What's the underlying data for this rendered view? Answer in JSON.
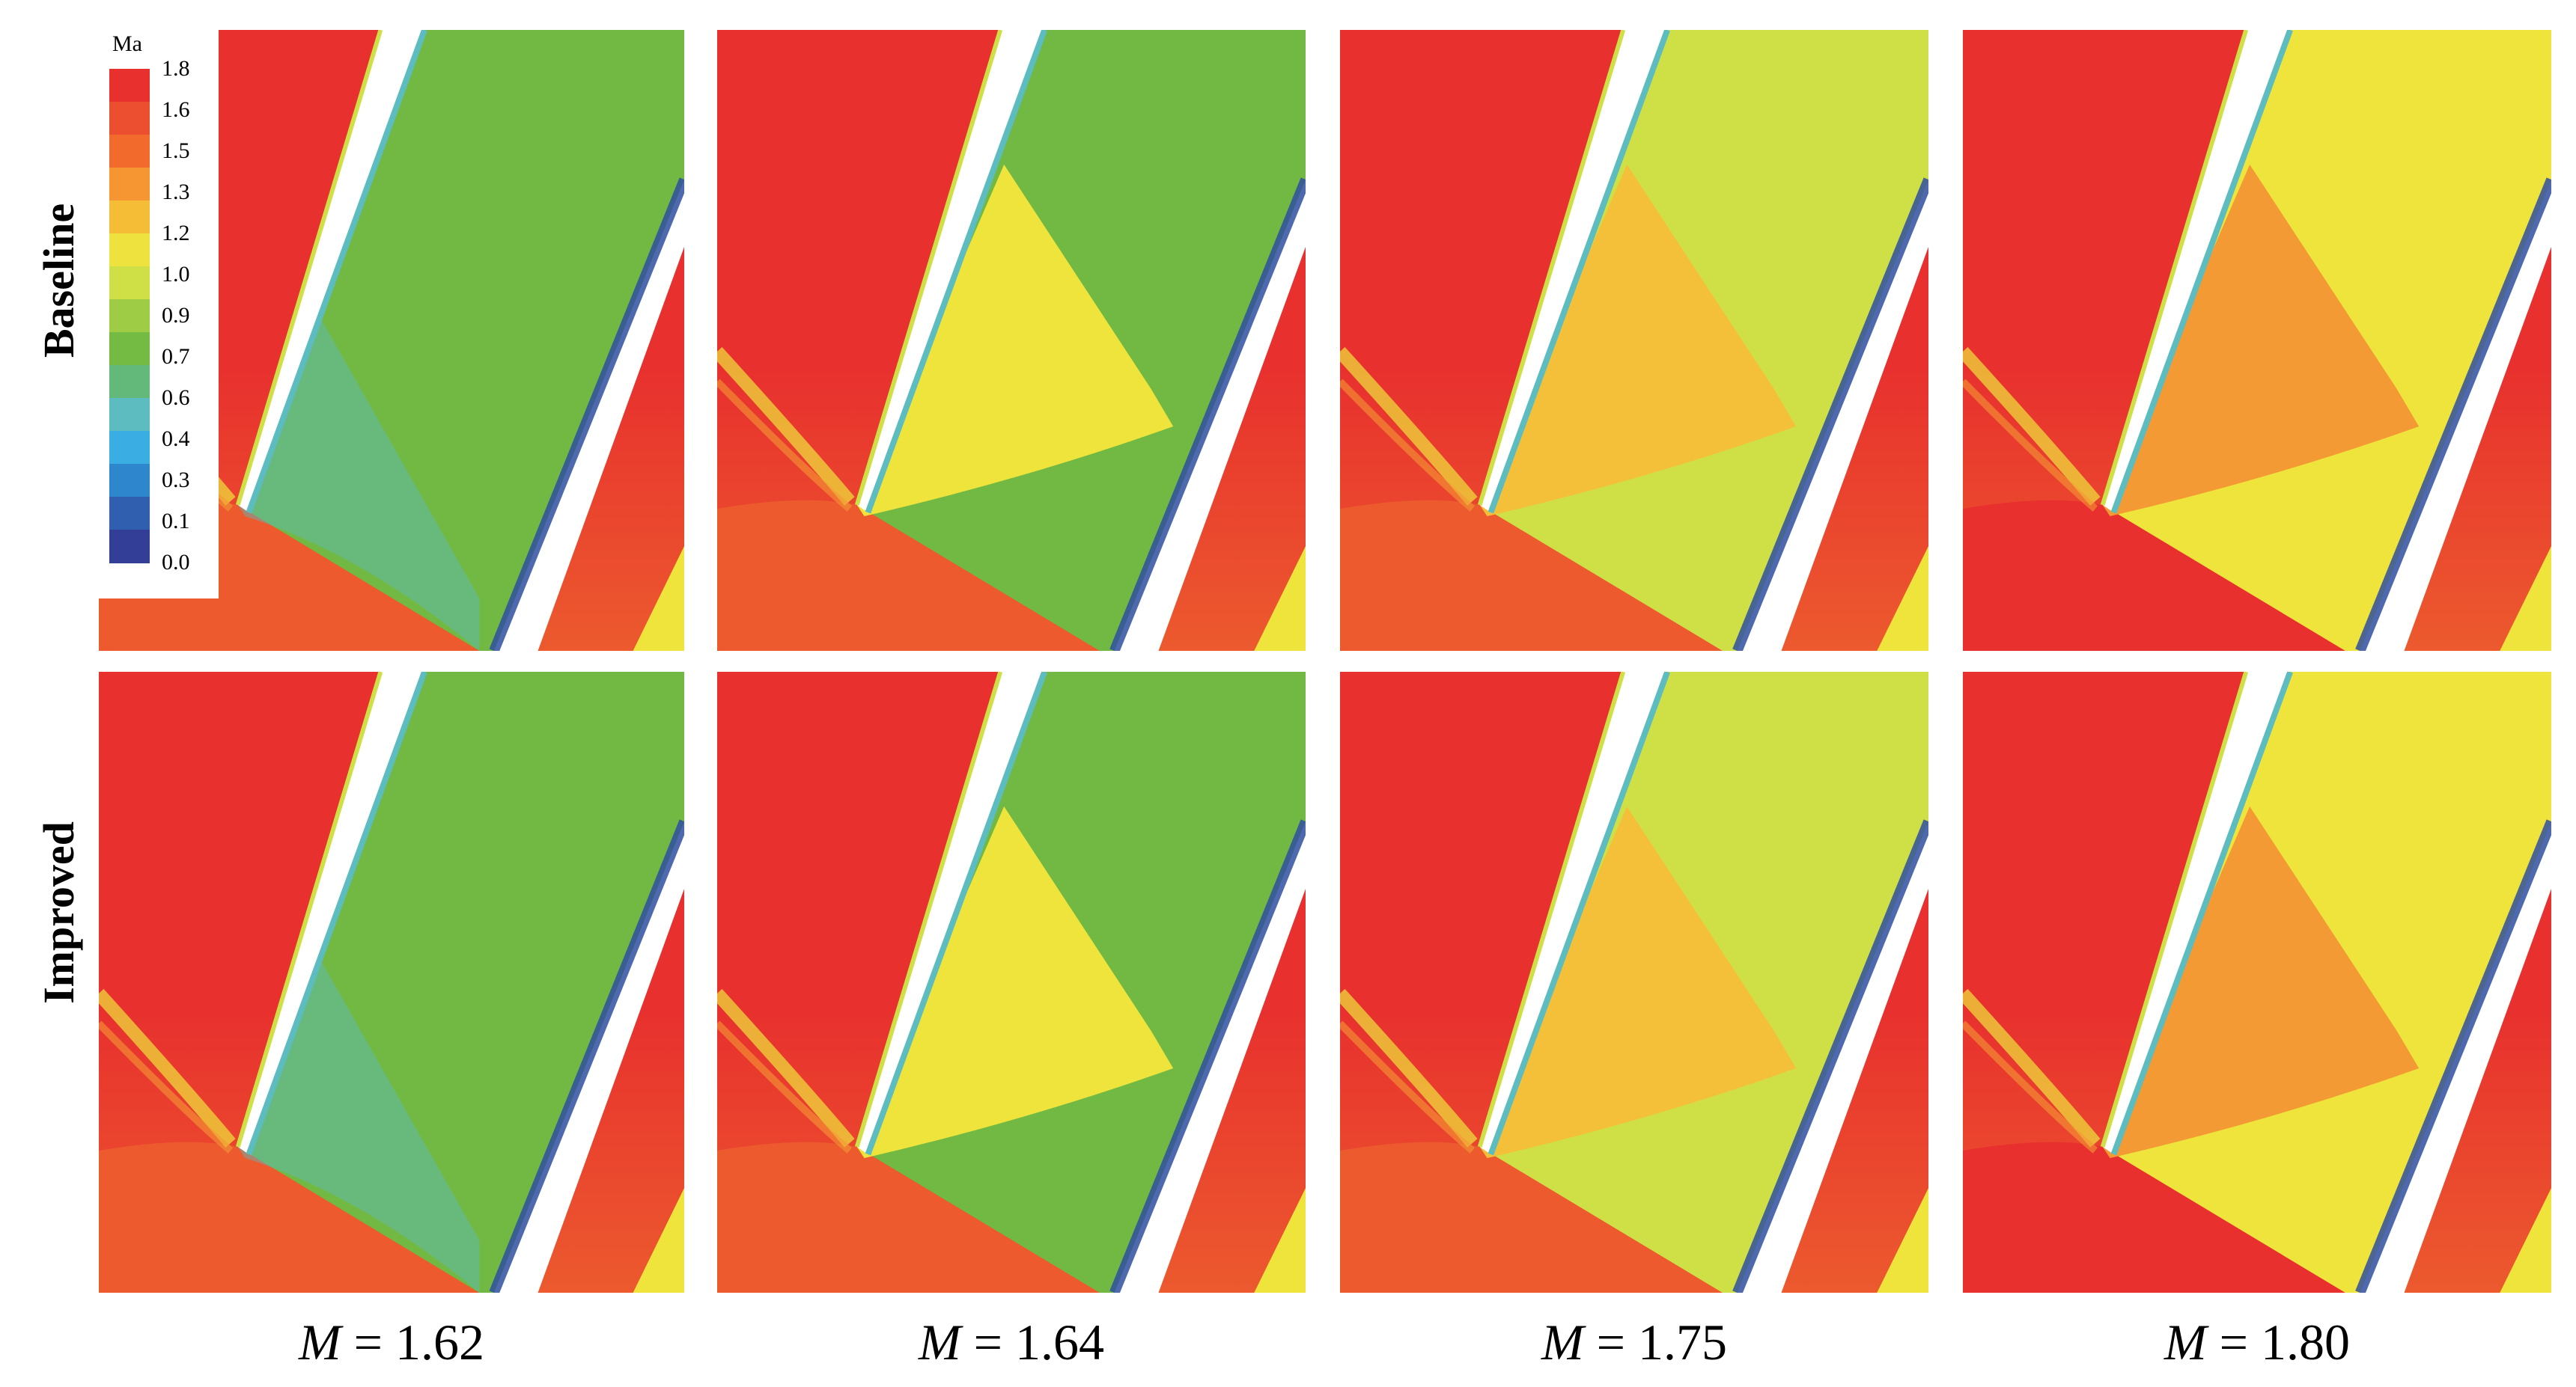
{
  "figure": {
    "row_labels": [
      "Baseline",
      "Improved"
    ],
    "columns": [
      {
        "symbol": "M",
        "equals": " = ",
        "value": "1.62"
      },
      {
        "symbol": "M",
        "equals": " = ",
        "value": "1.64"
      },
      {
        "symbol": "M",
        "equals": " = ",
        "value": "1.75"
      },
      {
        "symbol": "M",
        "equals": " = ",
        "value": "1.80"
      }
    ]
  },
  "legend": {
    "title": "Ma",
    "ticks": [
      "1.8",
      "1.6",
      "1.5",
      "1.3",
      "1.2",
      "1.0",
      "0.9",
      "0.7",
      "0.6",
      "0.4",
      "0.3",
      "0.1",
      "0.0"
    ],
    "colors": [
      "#e8312e",
      "#ec4f30",
      "#f26a2c",
      "#f59633",
      "#f5bd36",
      "#eee23e",
      "#cfe047",
      "#9fcc45",
      "#74bb44",
      "#62b97a",
      "#5cbcc0",
      "#3aaee3",
      "#2e86cc",
      "#2f5fae",
      "#333f96"
    ]
  },
  "palette": {
    "red": "#e8312e",
    "red_orange": "#ec5a2e",
    "orange": "#f39a34",
    "yellow_orange": "#f5c039",
    "yellow": "#eee43c",
    "yellow_green": "#cfe047",
    "green": "#72b944",
    "cyan": "#5cbcc0",
    "dark_blue": "#2f4fa0"
  }
}
